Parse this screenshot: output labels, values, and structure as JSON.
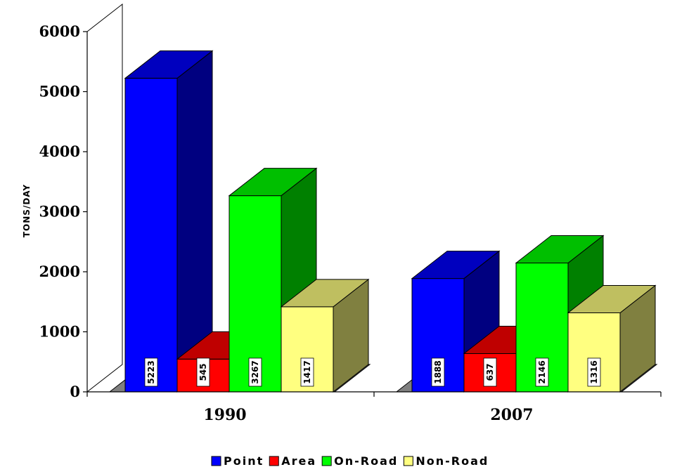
{
  "chart_data": {
    "type": "bar",
    "title": "",
    "xlabel": "",
    "ylabel": "TONS/DAY",
    "categories": [
      "1990",
      "2007"
    ],
    "series": [
      {
        "name": "Point",
        "values": [
          5223,
          1888
        ],
        "color": "#0000ff"
      },
      {
        "name": "Area",
        "values": [
          545,
          637
        ],
        "color": "#ff0000"
      },
      {
        "name": "On-Road",
        "values": [
          3267,
          2146
        ],
        "color": "#00ff00"
      },
      {
        "name": "Non-Road",
        "values": [
          1417,
          1316
        ],
        "color": "#ffff80"
      }
    ],
    "ylim": [
      0,
      6000
    ],
    "yticks": [
      0,
      1000,
      2000,
      3000,
      4000,
      5000,
      6000
    ],
    "data_labels": true,
    "legend_position": "bottom",
    "three_d": true,
    "grid": false
  }
}
